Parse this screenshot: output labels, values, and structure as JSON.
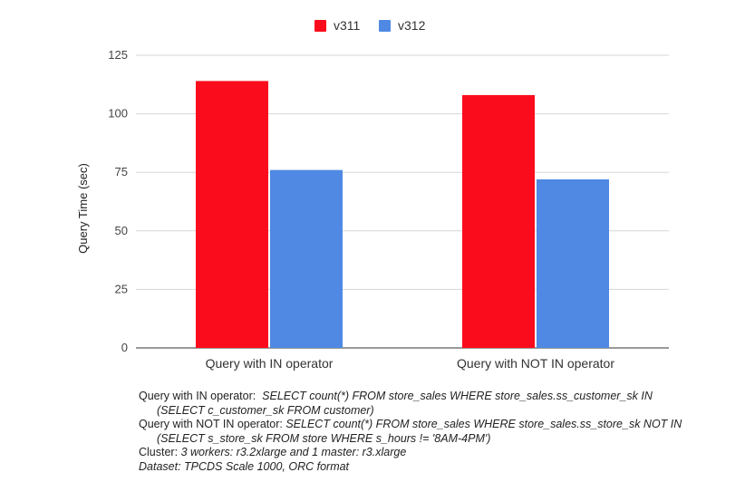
{
  "chart_data": {
    "type": "bar",
    "categories": [
      "Query with IN operator",
      "Query with NOT IN operator"
    ],
    "series": [
      {
        "name": "v311",
        "values": [
          114,
          108
        ],
        "color": "#fb0c1c"
      },
      {
        "name": "v312",
        "values": [
          76,
          72
        ],
        "color": "#4f89e3"
      }
    ],
    "ylabel": "Query Time (sec)",
    "ylim": [
      0,
      125
    ],
    "yticks": [
      0,
      25,
      50,
      75,
      100,
      125
    ],
    "grid": true,
    "legend_position": "top-center"
  },
  "notes": {
    "in_label": "Query with IN operator:",
    "in_query_1": "SELECT count(*) FROM store_sales WHERE store_sales.ss_customer_sk IN",
    "in_query_2": "(SELECT c_customer_sk  FROM customer)",
    "notin_label": "Query with NOT IN operator:",
    "notin_query_1": "SELECT count(*) FROM store_sales WHERE store_sales.ss_store_sk NOT IN",
    "notin_query_2": "(SELECT s_store_sk FROM store WHERE s_hours != '8AM-4PM')",
    "cluster_label": "Cluster:",
    "cluster_value": "3 workers: r3.2xlarge and 1 master: r3.xlarge",
    "dataset_value": "Dataset: TPCDS Scale 1000, ORC format"
  }
}
